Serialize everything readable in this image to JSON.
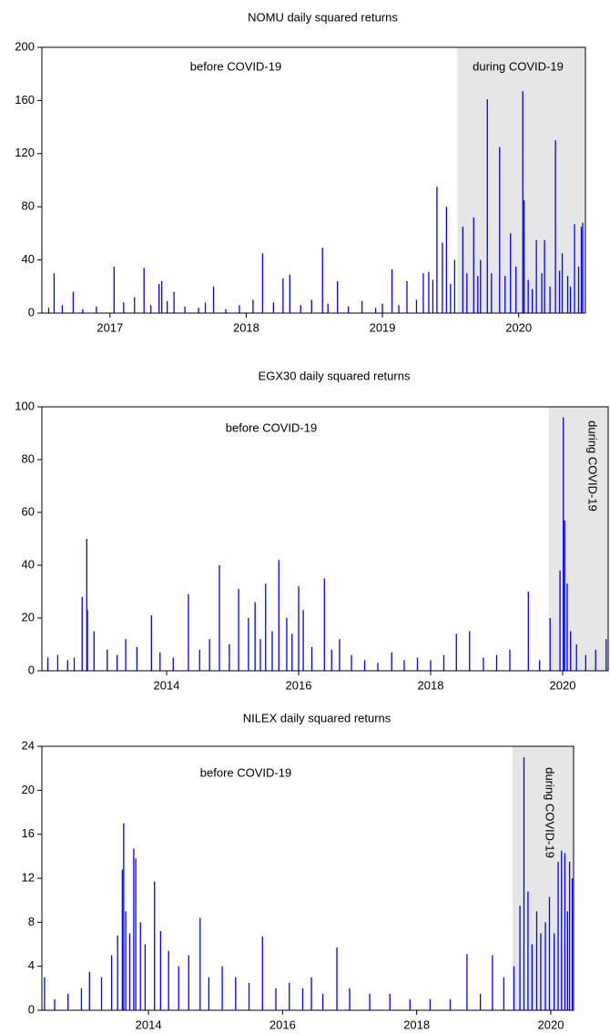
{
  "chart_data": [
    {
      "type": "spike",
      "title": "NOMU daily squared returns",
      "color": "#0000ff",
      "shade_color": "#e6e6e6",
      "shade_from": 2019.55,
      "annotations": [
        "before COVID-19",
        "during COVID-19"
      ],
      "xlim": [
        2016.5,
        2020.49
      ],
      "xticks": [
        2017,
        2018,
        2019,
        2020
      ],
      "ylim": [
        0,
        200
      ],
      "yticks": [
        0,
        40,
        80,
        120,
        160,
        200
      ],
      "x": [
        2016.55,
        2016.59,
        2016.65,
        2016.73,
        2016.8,
        2016.9,
        2017.03,
        2017.1,
        2017.18,
        2017.25,
        2017.3,
        2017.36,
        2017.38,
        2017.42,
        2017.47,
        2017.55,
        2017.65,
        2017.7,
        2017.76,
        2017.85,
        2017.95,
        2018.05,
        2018.12,
        2018.2,
        2018.27,
        2018.32,
        2018.4,
        2018.48,
        2018.56,
        2018.6,
        2018.67,
        2018.75,
        2018.85,
        2018.95,
        2019.0,
        2019.07,
        2019.12,
        2019.18,
        2019.25,
        2019.3,
        2019.34,
        2019.37,
        2019.4,
        2019.44,
        2019.47,
        2019.5,
        2019.53,
        2019.59,
        2019.62,
        2019.67,
        2019.7,
        2019.72,
        2019.77,
        2019.8,
        2019.86,
        2019.9,
        2019.94,
        2019.98,
        2020.03,
        2020.04,
        2020.07,
        2020.1,
        2020.13,
        2020.17,
        2020.19,
        2020.23,
        2020.27,
        2020.3,
        2020.32,
        2020.36,
        2020.38,
        2020.41,
        2020.44,
        2020.46,
        2020.47
      ],
      "values": [
        4,
        30,
        6,
        16,
        3,
        5,
        35,
        8,
        12,
        34,
        6,
        22,
        24,
        9,
        16,
        5,
        4,
        8,
        20,
        3,
        6,
        10,
        45,
        8,
        26,
        29,
        6,
        10,
        49,
        7,
        24,
        5,
        9,
        4,
        7,
        33,
        6,
        24,
        10,
        30,
        31,
        25,
        95,
        53,
        80,
        22,
        40,
        65,
        30,
        72,
        28,
        40,
        161,
        30,
        125,
        28,
        60,
        35,
        167,
        85,
        25,
        18,
        55,
        30,
        55,
        20,
        130,
        32,
        45,
        28,
        20,
        67,
        35,
        65,
        68
      ]
    },
    {
      "type": "spike",
      "title": "EGX30 daily squared returns",
      "color": "#0000ff",
      "shade_color": "#e6e6e6",
      "shade_from": 2019.79,
      "annotations": [
        "before COVID-19",
        "during COVID-19"
      ],
      "xlim": [
        2012.11,
        2020.69
      ],
      "xticks": [
        2014,
        2016,
        2018,
        2020
      ],
      "ylim": [
        0,
        100
      ],
      "yticks": [
        0,
        20,
        40,
        60,
        80,
        100
      ],
      "x": [
        2012.2,
        2012.35,
        2012.5,
        2012.6,
        2012.72,
        2012.79,
        2012.8,
        2012.9,
        2013.1,
        2013.25,
        2013.38,
        2013.55,
        2013.77,
        2013.9,
        2014.1,
        2014.33,
        2014.5,
        2014.65,
        2014.8,
        2014.95,
        2015.09,
        2015.24,
        2015.34,
        2015.42,
        2015.5,
        2015.6,
        2015.7,
        2015.82,
        2015.9,
        2016.0,
        2016.07,
        2016.2,
        2016.39,
        2016.5,
        2016.62,
        2016.8,
        2017.0,
        2017.2,
        2017.41,
        2017.6,
        2017.8,
        2018.0,
        2018.2,
        2018.39,
        2018.59,
        2018.8,
        2019.0,
        2019.2,
        2019.48,
        2019.65,
        2019.81,
        2019.96,
        2020.01,
        2020.03,
        2020.07,
        2020.12,
        2020.21,
        2020.35,
        2020.5,
        2020.66
      ],
      "values": [
        5,
        6,
        4,
        5,
        28,
        50,
        23,
        15,
        8,
        6,
        12,
        9,
        21,
        7,
        5,
        29,
        8,
        12,
        40,
        10,
        31,
        20,
        26,
        12,
        33,
        15,
        42,
        20,
        14,
        32,
        23,
        9,
        35,
        8,
        12,
        6,
        4,
        3,
        7,
        4,
        5,
        4,
        6,
        14,
        15,
        5,
        6,
        8,
        30,
        4,
        20,
        38,
        96,
        57,
        33,
        15,
        10,
        6,
        8,
        12
      ]
    },
    {
      "type": "spike",
      "title": "NILEX daily squared returns",
      "color": "#0000ff",
      "shade_color": "#e6e6e6",
      "shade_from": 2019.43,
      "annotations": [
        "before COVID-19",
        "during COVID-19"
      ],
      "xlim": [
        2012.41,
        2020.34
      ],
      "xticks": [
        2014,
        2016,
        2018,
        2020
      ],
      "ylim": [
        0,
        24
      ],
      "yticks": [
        0,
        4,
        8,
        12,
        16,
        20,
        24
      ],
      "x": [
        2012.45,
        2012.6,
        2012.8,
        2013.0,
        2013.12,
        2013.3,
        2013.45,
        2013.54,
        2013.61,
        2013.63,
        2013.66,
        2013.72,
        2013.78,
        2013.81,
        2013.88,
        2013.95,
        2014.09,
        2014.18,
        2014.3,
        2014.45,
        2014.6,
        2014.77,
        2014.9,
        2015.1,
        2015.3,
        2015.5,
        2015.7,
        2015.9,
        2016.1,
        2016.3,
        2016.43,
        2016.6,
        2016.81,
        2017.0,
        2017.3,
        2017.6,
        2017.9,
        2018.2,
        2018.5,
        2018.75,
        2018.95,
        2019.13,
        2019.3,
        2019.45,
        2019.54,
        2019.6,
        2019.66,
        2019.72,
        2019.79,
        2019.85,
        2019.92,
        2019.98,
        2020.05,
        2020.11,
        2020.16,
        2020.21,
        2020.25,
        2020.28,
        2020.32
      ],
      "values": [
        3,
        1,
        1.5,
        2,
        3.5,
        3,
        5,
        6.8,
        12.8,
        17,
        9,
        7,
        14.7,
        13.8,
        8,
        6,
        11.7,
        7.2,
        5.4,
        4,
        5,
        8.4,
        3,
        4,
        3,
        2.5,
        6.7,
        2,
        2.5,
        2,
        3,
        1.5,
        5.7,
        2,
        1.5,
        1.5,
        1,
        1,
        1,
        5.1,
        1.5,
        5,
        3,
        4,
        9.5,
        23,
        10.8,
        6,
        9,
        7,
        8,
        10.3,
        7,
        13.5,
        14.5,
        14.3,
        9,
        13.5,
        12
      ]
    }
  ]
}
